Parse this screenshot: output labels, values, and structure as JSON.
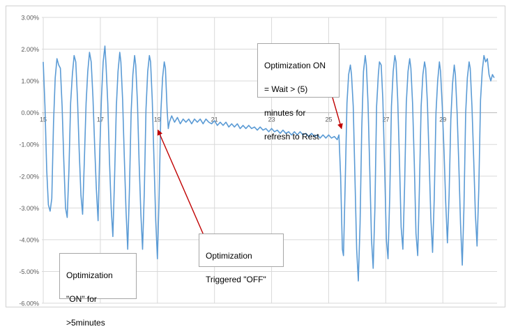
{
  "chart_data": {
    "type": "line",
    "title": "",
    "xlabel": "",
    "ylabel": "",
    "xlim": [
      14.95,
      30.9
    ],
    "ylim": [
      -6.0,
      3.0
    ],
    "grid": true,
    "y_ticks": [
      "3.00%",
      "2.00%",
      "1.00%",
      "0.00%",
      "-1.00%",
      "-2.00%",
      "-3.00%",
      "-4.00%",
      "-5.00%",
      "-6.00%"
    ],
    "y_tick_values": [
      3,
      2,
      1,
      0,
      -1,
      -2,
      -3,
      -4,
      -5,
      -6
    ],
    "x_ticks": [
      "15",
      "17",
      "19",
      "21",
      "23",
      "25",
      "27",
      "29"
    ],
    "x_tick_values": [
      15,
      17,
      19,
      21,
      23,
      25,
      27,
      29
    ],
    "line_color": "#5b9bd5",
    "series": [
      {
        "values": [
          [
            15.0,
            1.6
          ],
          [
            15.06,
            0.2
          ],
          [
            15.12,
            -1.8
          ],
          [
            15.18,
            -2.9
          ],
          [
            15.24,
            -3.1
          ],
          [
            15.3,
            -2.7
          ],
          [
            15.36,
            -0.3
          ],
          [
            15.42,
            1.1
          ],
          [
            15.48,
            1.7
          ],
          [
            15.54,
            1.5
          ],
          [
            15.6,
            1.4
          ],
          [
            15.66,
            0.2
          ],
          [
            15.72,
            -1.5
          ],
          [
            15.78,
            -3.0
          ],
          [
            15.84,
            -3.3
          ],
          [
            15.9,
            -1.8
          ],
          [
            15.96,
            0.3
          ],
          [
            16.02,
            1.2
          ],
          [
            16.08,
            1.8
          ],
          [
            16.14,
            1.6
          ],
          [
            16.2,
            0.4
          ],
          [
            16.26,
            -1.2
          ],
          [
            16.32,
            -2.6
          ],
          [
            16.38,
            -3.2
          ],
          [
            16.44,
            -1.5
          ],
          [
            16.5,
            0.3
          ],
          [
            16.56,
            1.3
          ],
          [
            16.62,
            1.9
          ],
          [
            16.68,
            1.6
          ],
          [
            16.74,
            0.5
          ],
          [
            16.8,
            -1.0
          ],
          [
            16.86,
            -2.4
          ],
          [
            16.92,
            -3.4
          ],
          [
            16.98,
            -1.2
          ],
          [
            17.04,
            0.5
          ],
          [
            17.1,
            1.6
          ],
          [
            17.16,
            2.1
          ],
          [
            17.2,
            1.5
          ],
          [
            17.26,
            0.3
          ],
          [
            17.32,
            -1.5
          ],
          [
            17.38,
            -3.0
          ],
          [
            17.44,
            -3.9
          ],
          [
            17.5,
            -2.0
          ],
          [
            17.56,
            0.2
          ],
          [
            17.62,
            1.3
          ],
          [
            17.68,
            1.9
          ],
          [
            17.72,
            1.6
          ],
          [
            17.78,
            0.4
          ],
          [
            17.84,
            -1.4
          ],
          [
            17.9,
            -3.1
          ],
          [
            17.96,
            -4.3
          ],
          [
            18.02,
            -2.4
          ],
          [
            18.08,
            0.0
          ],
          [
            18.14,
            1.2
          ],
          [
            18.2,
            1.8
          ],
          [
            18.24,
            1.5
          ],
          [
            18.3,
            0.3
          ],
          [
            18.36,
            -1.6
          ],
          [
            18.42,
            -3.2
          ],
          [
            18.48,
            -4.3
          ],
          [
            18.54,
            -2.5
          ],
          [
            18.6,
            0.1
          ],
          [
            18.66,
            1.3
          ],
          [
            18.72,
            1.8
          ],
          [
            18.76,
            1.6
          ],
          [
            18.82,
            0.4
          ],
          [
            18.88,
            -1.5
          ],
          [
            18.94,
            -3.4
          ],
          [
            19.0,
            -4.6
          ],
          [
            19.06,
            -2.6
          ],
          [
            19.12,
            0.0
          ],
          [
            19.18,
            1.1
          ],
          [
            19.24,
            1.6
          ],
          [
            19.28,
            1.4
          ],
          [
            19.34,
            0.1
          ],
          [
            19.38,
            -0.5
          ],
          [
            19.42,
            -0.3
          ],
          [
            19.5,
            -0.1
          ],
          [
            19.6,
            -0.3
          ],
          [
            19.7,
            -0.15
          ],
          [
            19.8,
            -0.35
          ],
          [
            19.9,
            -0.2
          ],
          [
            20.0,
            -0.3
          ],
          [
            20.1,
            -0.2
          ],
          [
            20.2,
            -0.35
          ],
          [
            20.3,
            -0.2
          ],
          [
            20.4,
            -0.3
          ],
          [
            20.5,
            -0.2
          ],
          [
            20.6,
            -0.35
          ],
          [
            20.7,
            -0.2
          ],
          [
            20.8,
            -0.3
          ],
          [
            20.9,
            -0.35
          ],
          [
            21.0,
            -0.25
          ],
          [
            21.1,
            -0.4
          ],
          [
            21.2,
            -0.3
          ],
          [
            21.3,
            -0.4
          ],
          [
            21.4,
            -0.3
          ],
          [
            21.5,
            -0.45
          ],
          [
            21.6,
            -0.35
          ],
          [
            21.7,
            -0.45
          ],
          [
            21.8,
            -0.35
          ],
          [
            21.9,
            -0.5
          ],
          [
            22.0,
            -0.4
          ],
          [
            22.1,
            -0.5
          ],
          [
            22.2,
            -0.4
          ],
          [
            22.3,
            -0.5
          ],
          [
            22.4,
            -0.45
          ],
          [
            22.5,
            -0.55
          ],
          [
            22.6,
            -0.45
          ],
          [
            22.7,
            -0.55
          ],
          [
            22.8,
            -0.5
          ],
          [
            22.9,
            -0.6
          ],
          [
            23.0,
            -0.5
          ],
          [
            23.1,
            -0.6
          ],
          [
            23.2,
            -0.55
          ],
          [
            23.3,
            -0.65
          ],
          [
            23.4,
            -0.55
          ],
          [
            23.5,
            -0.65
          ],
          [
            23.6,
            -0.6
          ],
          [
            23.7,
            -0.7
          ],
          [
            23.8,
            -0.6
          ],
          [
            23.9,
            -0.7
          ],
          [
            24.0,
            -0.6
          ],
          [
            24.1,
            -0.7
          ],
          [
            24.2,
            -0.65
          ],
          [
            24.3,
            -0.75
          ],
          [
            24.4,
            -0.65
          ],
          [
            24.5,
            -0.75
          ],
          [
            24.6,
            -0.7
          ],
          [
            24.7,
            -0.8
          ],
          [
            24.8,
            -0.7
          ],
          [
            24.9,
            -0.8
          ],
          [
            25.0,
            -0.7
          ],
          [
            25.1,
            -0.8
          ],
          [
            25.2,
            -0.75
          ],
          [
            25.3,
            -0.85
          ],
          [
            25.36,
            -0.7
          ],
          [
            25.42,
            -2.0
          ],
          [
            25.48,
            -4.3
          ],
          [
            25.52,
            -4.5
          ],
          [
            25.58,
            -2.2
          ],
          [
            25.64,
            0.3
          ],
          [
            25.7,
            1.2
          ],
          [
            25.76,
            1.5
          ],
          [
            25.8,
            1.2
          ],
          [
            25.86,
            0.2
          ],
          [
            25.92,
            -2.0
          ],
          [
            25.98,
            -4.3
          ],
          [
            26.04,
            -5.3
          ],
          [
            26.1,
            -3.5
          ],
          [
            26.16,
            -0.5
          ],
          [
            26.22,
            1.3
          ],
          [
            26.28,
            1.8
          ],
          [
            26.32,
            1.5
          ],
          [
            26.38,
            0.3
          ],
          [
            26.44,
            -1.8
          ],
          [
            26.5,
            -4.0
          ],
          [
            26.56,
            -4.9
          ],
          [
            26.62,
            -3.0
          ],
          [
            26.68,
            0.2
          ],
          [
            26.74,
            1.2
          ],
          [
            26.78,
            1.6
          ],
          [
            26.84,
            1.5
          ],
          [
            26.9,
            0.4
          ],
          [
            26.96,
            -1.7
          ],
          [
            27.02,
            -4.0
          ],
          [
            27.08,
            -4.6
          ],
          [
            27.14,
            -2.6
          ],
          [
            27.2,
            0.2
          ],
          [
            27.26,
            1.3
          ],
          [
            27.32,
            1.8
          ],
          [
            27.36,
            1.6
          ],
          [
            27.42,
            0.4
          ],
          [
            27.48,
            -1.5
          ],
          [
            27.54,
            -3.6
          ],
          [
            27.6,
            -4.3
          ],
          [
            27.66,
            -2.3
          ],
          [
            27.72,
            0.3
          ],
          [
            27.78,
            1.3
          ],
          [
            27.84,
            1.7
          ],
          [
            27.88,
            1.4
          ],
          [
            27.94,
            0.3
          ],
          [
            28.0,
            -1.6
          ],
          [
            28.06,
            -3.8
          ],
          [
            28.12,
            -4.5
          ],
          [
            28.18,
            -2.4
          ],
          [
            28.24,
            0.2
          ],
          [
            28.3,
            1.2
          ],
          [
            28.36,
            1.6
          ],
          [
            28.4,
            1.4
          ],
          [
            28.46,
            0.3
          ],
          [
            28.52,
            -1.5
          ],
          [
            28.58,
            -3.3
          ],
          [
            28.64,
            -4.4
          ],
          [
            28.7,
            -2.7
          ],
          [
            28.76,
            0.0
          ],
          [
            28.82,
            1.0
          ],
          [
            28.88,
            1.6
          ],
          [
            28.92,
            1.3
          ],
          [
            28.98,
            0.2
          ],
          [
            29.04,
            -1.2
          ],
          [
            29.1,
            -2.8
          ],
          [
            29.16,
            -4.1
          ],
          [
            29.22,
            -2.6
          ],
          [
            29.28,
            -0.2
          ],
          [
            29.34,
            0.9
          ],
          [
            29.4,
            1.5
          ],
          [
            29.44,
            1.2
          ],
          [
            29.5,
            0.0
          ],
          [
            29.56,
            -1.6
          ],
          [
            29.62,
            -3.5
          ],
          [
            29.68,
            -4.8
          ],
          [
            29.74,
            -3.0
          ],
          [
            29.8,
            0.0
          ],
          [
            29.86,
            1.1
          ],
          [
            29.92,
            1.6
          ],
          [
            29.96,
            1.4
          ],
          [
            30.02,
            0.2
          ],
          [
            30.08,
            -1.4
          ],
          [
            30.14,
            -3.2
          ],
          [
            30.2,
            -4.2
          ],
          [
            30.26,
            -2.4
          ],
          [
            30.32,
            0.4
          ],
          [
            30.38,
            1.3
          ],
          [
            30.44,
            1.8
          ],
          [
            30.5,
            1.6
          ],
          [
            30.56,
            1.7
          ],
          [
            30.62,
            1.2
          ],
          [
            30.68,
            1.0
          ],
          [
            30.74,
            1.2
          ],
          [
            30.8,
            1.1
          ]
        ]
      }
    ],
    "annotations": [
      {
        "lines": [
          "Optimization",
          "\"ON\" for",
          ">5minutes"
        ]
      },
      {
        "lines": [
          "Optimization",
          "Triggered \"OFF\""
        ],
        "arrow_to": [
          19.02,
          -0.55
        ]
      },
      {
        "lines": [
          "Optimization ON",
          "= Wait > (5)",
          "minutes for",
          "refresh to Rest"
        ],
        "arrow_to": [
          25.45,
          -0.5
        ]
      }
    ]
  }
}
